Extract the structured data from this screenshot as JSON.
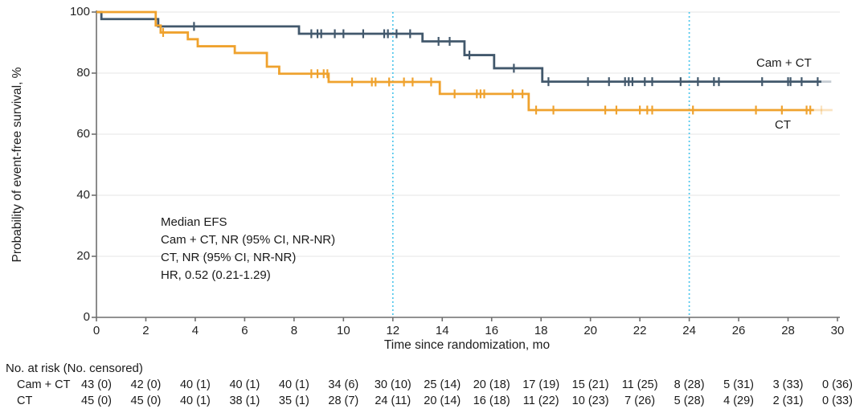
{
  "figure": {
    "annotation": {
      "lines": [
        "Median EFS",
        "Cam + CT, NR (95% CI, NR-NR)",
        "CT, NR (95% CI, NR-NR)",
        "HR, 0.52 (0.21-1.29)"
      ]
    },
    "risk_table": {
      "header": "No. at risk (No. censored)",
      "rows": [
        {
          "label": "Cam + CT",
          "values": [
            "43 (0)",
            "42 (0)",
            "40 (1)",
            "40 (1)",
            "40 (1)",
            "34 (6)",
            "30 (10)",
            "25 (14)",
            "20 (18)",
            "17 (19)",
            "15 (21)",
            "11 (25)",
            "8 (28)",
            "5 (31)",
            "3 (33)",
            "0 (36)"
          ]
        },
        {
          "label": "CT",
          "values": [
            "45 (0)",
            "45 (0)",
            "40 (1)",
            "38 (1)",
            "35 (1)",
            "28 (7)",
            "24 (11)",
            "20 (14)",
            "16 (18)",
            "11 (22)",
            "10 (23)",
            "7 (26)",
            "5 (28)",
            "4 (29)",
            "2 (31)",
            "0 (33)"
          ]
        }
      ]
    }
  },
  "chart_data": {
    "type": "line",
    "subtype": "kaplan_meier_step_curve",
    "title": "",
    "xlabel": "Time since randomization, mo",
    "ylabel": "Probability of event-free survival, %",
    "xlim": [
      0,
      30
    ],
    "ylim": [
      0,
      100
    ],
    "x_ticks": [
      0,
      2,
      4,
      6,
      8,
      10,
      12,
      14,
      16,
      18,
      20,
      22,
      24,
      26,
      28,
      30
    ],
    "y_ticks": [
      0,
      20,
      40,
      60,
      80,
      100
    ],
    "grid": "horizontal",
    "reference_lines_x": [
      12,
      24
    ],
    "colors": {
      "reference_line": "#4fc6ec",
      "grid": "#ebebeb",
      "axis": "#6f6f6f",
      "text": "#1d1d1d"
    },
    "legend": {
      "position": "inline-right-of-curves",
      "labels": [
        "Cam + CT",
        "CT"
      ]
    },
    "series": [
      {
        "name": "Cam + CT",
        "color": "#42586c",
        "steps": [
          [
            0,
            100
          ],
          [
            0.2,
            97.7
          ],
          [
            2.5,
            95.3
          ],
          [
            8.2,
            92.9
          ],
          [
            13.2,
            90.4
          ],
          [
            14.9,
            85.9
          ],
          [
            16.1,
            81.6
          ],
          [
            18.05,
            77.2
          ]
        ],
        "end_solid": 29.35,
        "end_faded": 29.75,
        "censors": [
          [
            3.95,
            95.3
          ],
          [
            8.7,
            92.9
          ],
          [
            8.95,
            92.9
          ],
          [
            9.1,
            92.9
          ],
          [
            9.65,
            92.9
          ],
          [
            10.0,
            92.9
          ],
          [
            10.8,
            92.9
          ],
          [
            11.65,
            92.9
          ],
          [
            11.8,
            92.9
          ],
          [
            12.15,
            92.9
          ],
          [
            12.7,
            92.9
          ],
          [
            13.85,
            90.4
          ],
          [
            14.3,
            90.4
          ],
          [
            15.1,
            85.9
          ],
          [
            16.9,
            81.6
          ],
          [
            18.3,
            77.2
          ],
          [
            19.9,
            77.2
          ],
          [
            20.75,
            77.2
          ],
          [
            21.4,
            77.2
          ],
          [
            21.55,
            77.2
          ],
          [
            21.7,
            77.2
          ],
          [
            22.2,
            77.2
          ],
          [
            22.5,
            77.2
          ],
          [
            23.65,
            77.2
          ],
          [
            24.35,
            77.2
          ],
          [
            25.0,
            77.2
          ],
          [
            25.2,
            77.2
          ],
          [
            26.95,
            77.2
          ],
          [
            28.0,
            77.2
          ],
          [
            28.1,
            77.2
          ],
          [
            28.55,
            77.2
          ],
          [
            29.2,
            77.2
          ]
        ],
        "censors_faded": []
      },
      {
        "name": "CT",
        "color": "#efa22e",
        "steps": [
          [
            0,
            100
          ],
          [
            2.4,
            95.6
          ],
          [
            2.6,
            93.3
          ],
          [
            3.7,
            91.1
          ],
          [
            4.1,
            88.8
          ],
          [
            5.6,
            86.6
          ],
          [
            6.9,
            82.1
          ],
          [
            7.4,
            79.8
          ],
          [
            9.4,
            77.1
          ],
          [
            13.9,
            73.2
          ],
          [
            17.5,
            67.9
          ]
        ],
        "end_solid": 29.05,
        "end_faded": 29.8,
        "censors": [
          [
            2.7,
            93.3
          ],
          [
            8.7,
            79.8
          ],
          [
            8.95,
            79.8
          ],
          [
            9.2,
            79.8
          ],
          [
            9.35,
            79.8
          ],
          [
            10.35,
            77.1
          ],
          [
            11.15,
            77.1
          ],
          [
            11.3,
            77.1
          ],
          [
            11.85,
            77.1
          ],
          [
            12.45,
            77.1
          ],
          [
            12.8,
            77.1
          ],
          [
            13.55,
            77.1
          ],
          [
            14.5,
            73.2
          ],
          [
            15.4,
            73.2
          ],
          [
            15.55,
            73.2
          ],
          [
            15.7,
            73.2
          ],
          [
            16.85,
            73.2
          ],
          [
            17.25,
            73.2
          ],
          [
            17.8,
            67.9
          ],
          [
            18.5,
            67.9
          ],
          [
            20.6,
            67.9
          ],
          [
            21.05,
            67.9
          ],
          [
            22.0,
            67.9
          ],
          [
            22.3,
            67.9
          ],
          [
            22.5,
            67.9
          ],
          [
            24.15,
            67.9
          ],
          [
            26.7,
            67.9
          ],
          [
            27.75,
            67.9
          ],
          [
            28.75,
            67.9
          ],
          [
            28.9,
            67.9
          ]
        ],
        "censors_faded": [
          [
            29.35,
            67.9
          ]
        ]
      }
    ]
  }
}
